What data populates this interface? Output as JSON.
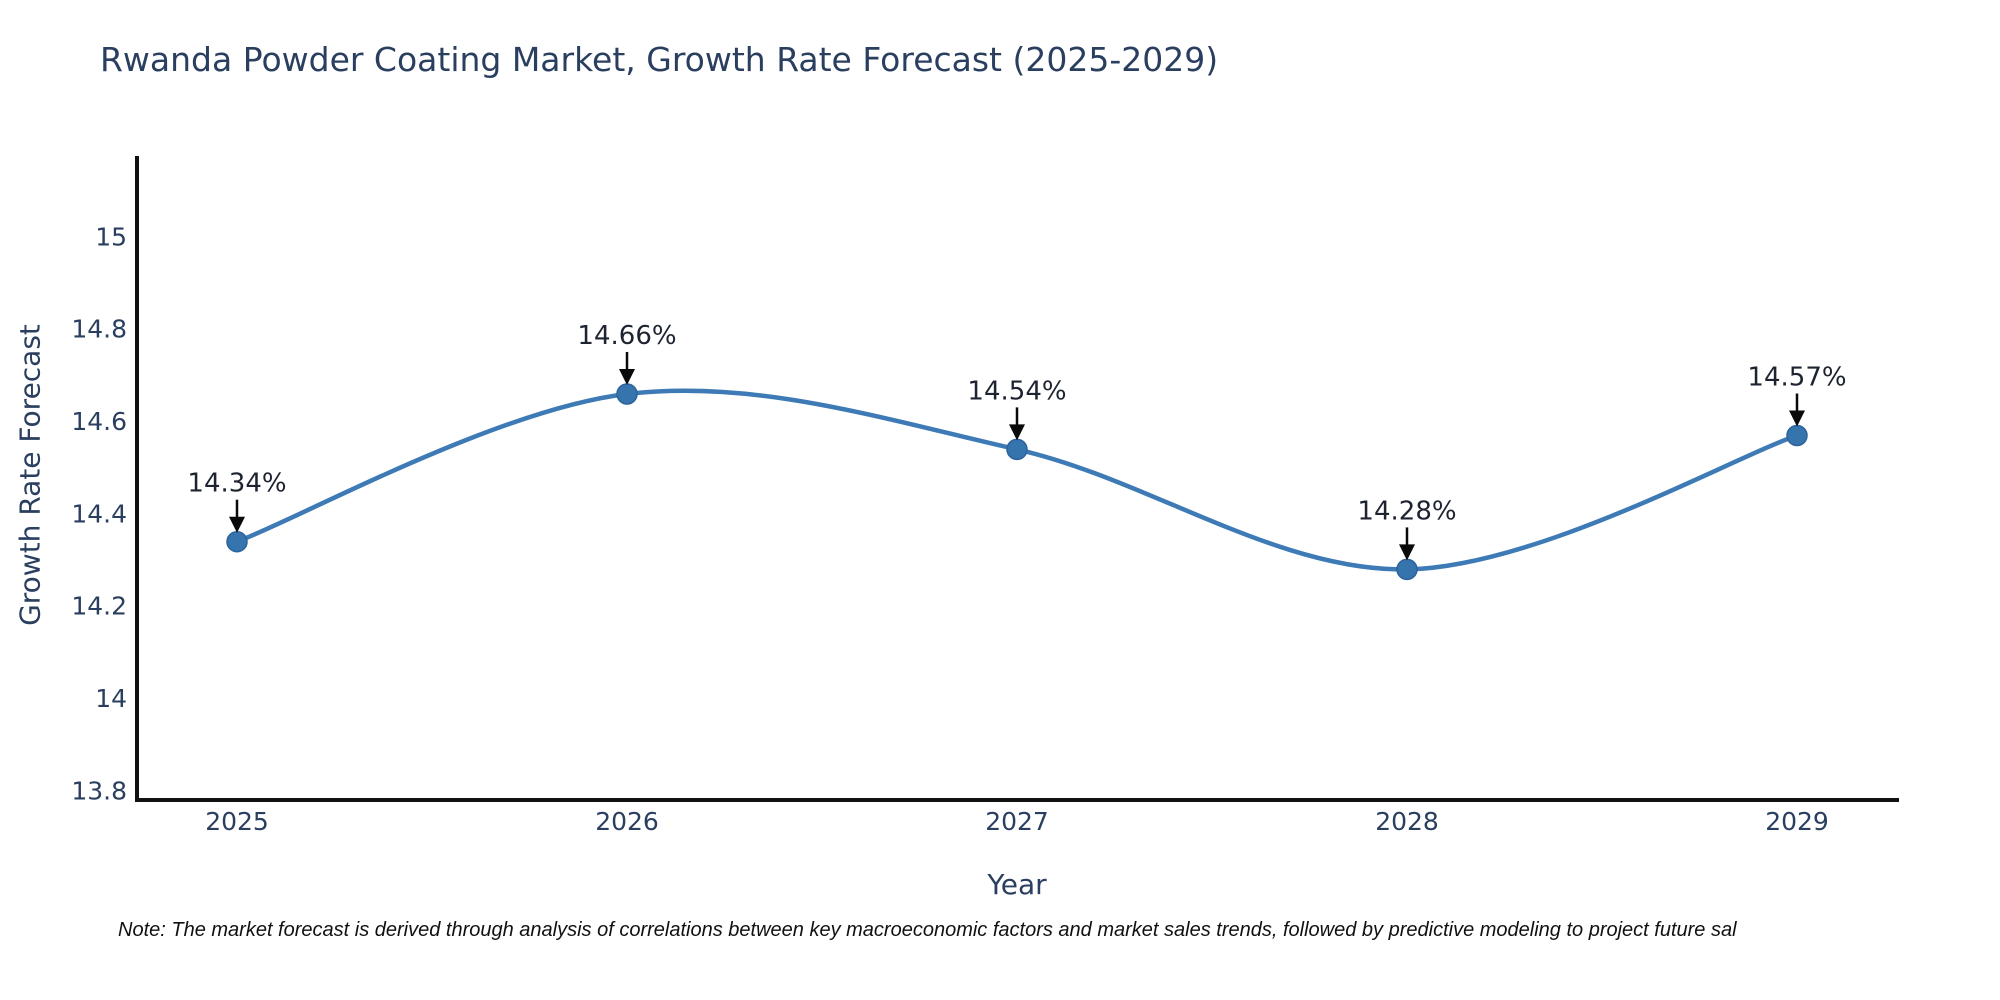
{
  "title": "Rwanda Powder Coating Market, Growth Rate Forecast (2025-2029)",
  "note": "Note: The market forecast is derived through analysis of correlations between key macroeconomic factors and market sales trends, followed by predictive modeling to project future sal",
  "chart_data": {
    "type": "line",
    "title": "Rwanda Powder Coating Market, Growth Rate Forecast (2025-2029)",
    "xlabel": "Year",
    "ylabel": "Growth Rate Forecast",
    "x": [
      2025,
      2026,
      2027,
      2028,
      2029
    ],
    "values": [
      14.34,
      14.66,
      14.54,
      14.28,
      14.57
    ],
    "point_labels": [
      "14.34%",
      "14.66%",
      "14.54%",
      "14.28%",
      "14.57%"
    ],
    "xtick_labels": [
      "2025",
      "2026",
      "2027",
      "2028",
      "2029"
    ],
    "yticks": [
      15,
      14.8,
      14.6,
      14.4,
      14.2,
      14,
      13.8
    ],
    "ytick_labels": [
      "15",
      "14.8",
      "14.6",
      "14.4",
      "14.2",
      "14",
      "13.8"
    ],
    "ylim": [
      13.78,
      15.17
    ],
    "grid": false,
    "legend": false,
    "smooth": true,
    "colors": {
      "line": "#3d7ab6",
      "marker": "#3674ae",
      "marker_edge": "#2d639a",
      "spine": "#111111",
      "axis_text": "#2a3f5f",
      "annotation_text": "#1d2330",
      "arrow": "#0a0a0a",
      "background": "#ffffff"
    }
  }
}
